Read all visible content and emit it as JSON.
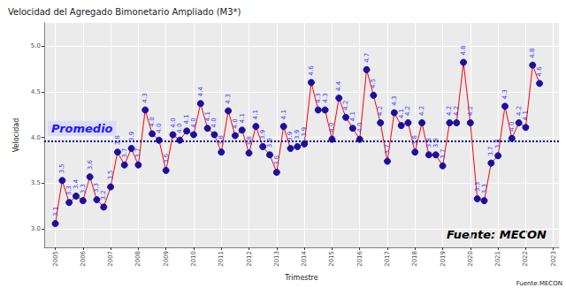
{
  "chart_data": {
    "type": "line",
    "title": "Velocidad del Agregado Bimonetario Ampliado (M3*)",
    "x_label": "Trimestre",
    "y_label": "Velocidad",
    "x": [
      2005,
      2005.25,
      2005.5,
      2005.75,
      2006,
      2006.25,
      2006.5,
      2006.75,
      2007,
      2007.25,
      2007.5,
      2007.75,
      2008,
      2008.25,
      2008.5,
      2008.75,
      2009,
      2009.25,
      2009.5,
      2009.75,
      2010,
      2010.25,
      2010.5,
      2010.75,
      2011,
      2011.25,
      2011.5,
      2011.75,
      2012,
      2012.25,
      2012.5,
      2012.75,
      2013,
      2013.25,
      2013.5,
      2013.75,
      2014,
      2014.25,
      2014.5,
      2014.75,
      2015,
      2015.25,
      2015.5,
      2015.75,
      2016,
      2016.25,
      2016.5,
      2016.75,
      2017,
      2017.25,
      2017.5,
      2017.75,
      2018,
      2018.25,
      2018.5,
      2018.75,
      2019,
      2019.25,
      2019.5,
      2019.75,
      2020,
      2020.25,
      2020.5,
      2020.75,
      2021,
      2021.25,
      2021.5,
      2021.75,
      2022,
      2022.25,
      2022.5
    ],
    "values": [
      3.06,
      3.53,
      3.29,
      3.36,
      3.31,
      3.57,
      3.32,
      3.24,
      3.46,
      3.84,
      3.7,
      3.88,
      3.7,
      4.3,
      4.04,
      3.97,
      3.64,
      4.03,
      3.97,
      4.07,
      4.03,
      4.37,
      4.1,
      4.03,
      3.84,
      4.29,
      4.02,
      4.08,
      3.83,
      4.12,
      3.9,
      3.81,
      3.62,
      4.12,
      3.88,
      3.9,
      3.93,
      4.6,
      4.3,
      4.3,
      3.98,
      4.43,
      4.22,
      4.1,
      3.98,
      4.74,
      4.46,
      4.16,
      3.74,
      4.27,
      4.13,
      4.16,
      3.84,
      4.16,
      3.81,
      3.81,
      3.69,
      4.16,
      4.16,
      4.82,
      4.16,
      3.33,
      3.31,
      3.72,
      3.8,
      4.34,
      3.99,
      4.16,
      4.11,
      4.79,
      4.59
    ],
    "value_labels": [
      "3.1",
      "3.5",
      "3.3",
      "3.4",
      "3.3",
      "3.6",
      "3.3",
      "3.2",
      "3.5",
      "3.8",
      "3.7",
      "3.9",
      "3.7",
      "4.3",
      "4.0",
      "4.0",
      "3.6",
      "4.0",
      "4.0",
      "4.1",
      "4.0",
      "4.4",
      "4.1",
      "4.0",
      "3.8",
      "4.3",
      "4.0",
      "4.1",
      "3.8",
      "4.1",
      "3.9",
      "3.8",
      "3.6",
      "4.1",
      "3.9",
      "3.9",
      "3.9",
      "4.6",
      "4.3",
      "4.3",
      "4.0",
      "4.4",
      "4.2",
      "4.1",
      "4.0",
      "4.7",
      "4.5",
      "4.2",
      "3.7",
      "4.3",
      "4.1",
      "4.2",
      "3.8",
      "4.2",
      "3.8",
      "3.8",
      "3.7",
      "4.2",
      "4.2",
      "4.8",
      "4.2",
      "3.3",
      "3.3",
      "3.7",
      "3.8",
      "4.3",
      "4.0",
      "4.2",
      "4.1",
      "4.8",
      "4.6"
    ],
    "data_labels": true,
    "color": "#FF0000",
    "marker": "circle",
    "xlim": [
      2004.6,
      2023.2
    ],
    "xticks": [
      2005,
      2006,
      2007,
      2008,
      2009,
      2010,
      2011,
      2012,
      2013,
      2014,
      2015,
      2016,
      2017,
      2018,
      2019,
      2020,
      2021,
      2022,
      2023
    ],
    "ylim": [
      2.8,
      5.25
    ],
    "yticks": [
      {
        "value": 3,
        "label": "3.0"
      },
      3.5,
      {
        "value": 4,
        "label": "4.0"
      },
      4.5,
      {
        "value": 5,
        "label": "5.0"
      }
    ],
    "grid": true,
    "reference_line": {
      "value": 3.96,
      "label": "Promedio",
      "line_style": "dotted"
    },
    "source": "Fuente: MECON",
    "caption": "Fuente:MECON"
  }
}
